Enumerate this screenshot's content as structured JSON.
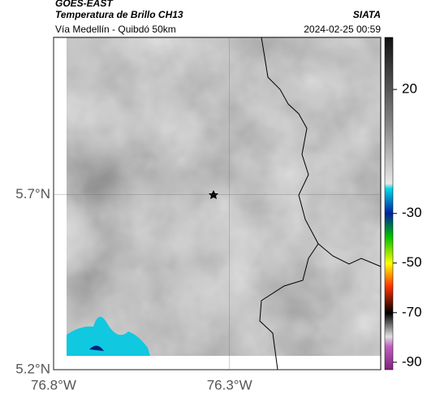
{
  "header": {
    "satellite": "GOES-EAST",
    "product": "Temperatura de Brillo CH13",
    "source": "SIATA",
    "route": "Vía Medellín - Quibdó 50km",
    "timestamp": "2024-02-25 00:59"
  },
  "map": {
    "lonlim": [
      -76.8,
      -75.87
    ],
    "latlim": [
      5.2,
      6.15
    ],
    "lonticks": [
      {
        "value": -76.8,
        "label": "76.8°W"
      },
      {
        "value": -76.3,
        "label": "76.3°W"
      }
    ],
    "latticks": [
      {
        "value": 5.2,
        "label": "5.2°N"
      },
      {
        "value": 5.7,
        "label": "5.7°N"
      }
    ]
  },
  "colorbar": {
    "range": [
      41,
      -93
    ],
    "ticks": [
      20,
      -30,
      -50,
      -70,
      -90
    ]
  }
}
